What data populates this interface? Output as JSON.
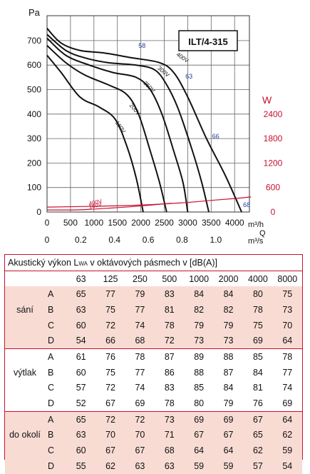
{
  "chart_data": {
    "type": "line",
    "title": "ILT/4-315",
    "left_axis": {
      "label": "Pa",
      "ticks": [
        0,
        100,
        200,
        300,
        400,
        500,
        600,
        700
      ],
      "ylim": [
        0,
        760
      ]
    },
    "right_axis": {
      "label": "W",
      "ticks": [
        0,
        600,
        1200,
        1800,
        2400
      ],
      "ylim": [
        0,
        2736
      ]
    },
    "x_axis": {
      "ticks": [
        0,
        500,
        1000,
        1500,
        2000,
        2500,
        3000,
        3500,
        4000
      ],
      "unit": "m³/h",
      "xlim": [
        0,
        4500
      ]
    },
    "x_axis_secondary": {
      "ticks": [
        "0",
        "0.2",
        "0.4",
        "0.6",
        "0.8",
        "1.0"
      ],
      "values": [
        0,
        0.2,
        0.4,
        0.6,
        0.8,
        1.0
      ],
      "unit": "m³/s"
    },
    "q_label": "Q",
    "grid": true,
    "pressure_series": [
      {
        "name": "400V",
        "points": [
          [
            0,
            750
          ],
          [
            300,
            690
          ],
          [
            700,
            660
          ],
          [
            1200,
            650
          ],
          [
            1800,
            630
          ],
          [
            2400,
            610
          ],
          [
            2700,
            570
          ],
          [
            3000,
            470
          ],
          [
            3400,
            300
          ],
          [
            3800,
            150
          ],
          [
            4150,
            0
          ]
        ]
      },
      {
        "name": "300V",
        "points": [
          [
            0,
            725
          ],
          [
            400,
            660
          ],
          [
            800,
            630
          ],
          [
            1300,
            610
          ],
          [
            1900,
            600
          ],
          [
            2300,
            580
          ],
          [
            2550,
            520
          ],
          [
            2800,
            420
          ],
          [
            3100,
            250
          ],
          [
            3300,
            120
          ],
          [
            3450,
            0
          ]
        ]
      },
      {
        "name": "250V",
        "points": [
          [
            0,
            710
          ],
          [
            400,
            640
          ],
          [
            900,
            600
          ],
          [
            1400,
            570
          ],
          [
            1900,
            550
          ],
          [
            2200,
            500
          ],
          [
            2450,
            400
          ],
          [
            2700,
            250
          ],
          [
            2900,
            120
          ],
          [
            3000,
            0
          ]
        ]
      },
      {
        "name": "200V",
        "points": [
          [
            0,
            680
          ],
          [
            400,
            610
          ],
          [
            800,
            560
          ],
          [
            1300,
            520
          ],
          [
            1700,
            480
          ],
          [
            1950,
            400
          ],
          [
            2200,
            250
          ],
          [
            2400,
            120
          ],
          [
            2550,
            0
          ]
        ]
      },
      {
        "name": "160V",
        "points": [
          [
            0,
            640
          ],
          [
            300,
            570
          ],
          [
            700,
            470
          ],
          [
            1100,
            430
          ],
          [
            1450,
            380
          ],
          [
            1700,
            270
          ],
          [
            1900,
            140
          ],
          [
            2050,
            0
          ]
        ]
      }
    ],
    "efficiency_labels": [
      "58",
      "63",
      "66",
      "68"
    ],
    "power_series": [
      {
        "name": "400V",
        "points": [
          [
            0,
            120
          ],
          [
            1000,
            140
          ],
          [
            2000,
            170
          ],
          [
            3000,
            235
          ],
          [
            3500,
            285
          ],
          [
            4000,
            330
          ],
          [
            4350,
            370
          ]
        ]
      },
      {
        "name": "160V",
        "points": [
          [
            0,
            50
          ],
          [
            700,
            55
          ],
          [
            1400,
            100
          ],
          [
            2000,
            150
          ],
          [
            2650,
            215
          ]
        ]
      }
    ]
  },
  "table": {
    "title_prefix": "Akustický výkon L",
    "title_sub": "WA",
    "title_suffix": " v oktávových pásmech v [dB(A)]",
    "frequencies": [
      "63",
      "125",
      "250",
      "500",
      "1000",
      "2000",
      "4000",
      "8000"
    ],
    "groups": [
      {
        "name": "sání",
        "rows": [
          {
            "label": "A",
            "values": [
              "65",
              "77",
              "79",
              "83",
              "84",
              "84",
              "80",
              "75"
            ]
          },
          {
            "label": "B",
            "values": [
              "63",
              "75",
              "77",
              "81",
              "82",
              "82",
              "78",
              "73"
            ]
          },
          {
            "label": "C",
            "values": [
              "60",
              "72",
              "74",
              "78",
              "79",
              "79",
              "75",
              "70"
            ]
          },
          {
            "label": "D",
            "values": [
              "54",
              "66",
              "68",
              "72",
              "73",
              "73",
              "69",
              "64"
            ]
          }
        ]
      },
      {
        "name": "výtlak",
        "rows": [
          {
            "label": "A",
            "values": [
              "61",
              "76",
              "78",
              "87",
              "89",
              "88",
              "85",
              "78"
            ]
          },
          {
            "label": "B",
            "values": [
              "60",
              "75",
              "77",
              "86",
              "88",
              "87",
              "84",
              "77"
            ]
          },
          {
            "label": "C",
            "values": [
              "57",
              "72",
              "74",
              "83",
              "85",
              "84",
              "81",
              "74"
            ]
          },
          {
            "label": "D",
            "values": [
              "52",
              "67",
              "69",
              "78",
              "80",
              "79",
              "76",
              "69"
            ]
          }
        ]
      },
      {
        "name": "do okolí",
        "rows": [
          {
            "label": "A",
            "values": [
              "65",
              "72",
              "72",
              "73",
              "69",
              "69",
              "67",
              "64"
            ]
          },
          {
            "label": "B",
            "values": [
              "63",
              "70",
              "70",
              "71",
              "67",
              "67",
              "65",
              "62"
            ]
          },
          {
            "label": "C",
            "values": [
              "60",
              "67",
              "67",
              "68",
              "64",
              "64",
              "62",
              "59"
            ]
          },
          {
            "label": "D",
            "values": [
              "55",
              "62",
              "63",
              "63",
              "59",
              "59",
              "57",
              "54"
            ]
          }
        ]
      }
    ]
  },
  "colors": {
    "grid": "#555555",
    "curve": "#111111",
    "power": "#c8102e",
    "efficiency": "#1f3f99",
    "band": "#f8dcd4",
    "frame": "#c8102e"
  }
}
